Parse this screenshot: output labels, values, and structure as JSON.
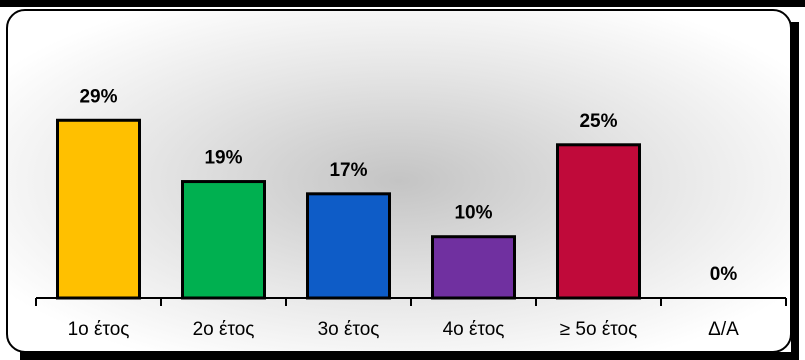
{
  "chart_data": {
    "type": "bar",
    "categories": [
      "1ο έτος",
      "2ο έτος",
      "3ο έτος",
      "4ο έτος",
      "≥ 5ο έτος",
      "Δ/Α"
    ],
    "values": [
      29,
      19,
      17,
      10,
      25,
      0
    ],
    "value_labels": [
      "29%",
      "19%",
      "17%",
      "10%",
      "25%",
      "0%"
    ],
    "colors": [
      "#FFC000",
      "#00B050",
      "#0E5CC7",
      "#7030A0",
      "#C00A3A",
      "#000000"
    ],
    "ylim": [
      0,
      35
    ],
    "grid": false,
    "legend": "none",
    "title": "",
    "xlabel": "",
    "ylabel": ""
  }
}
